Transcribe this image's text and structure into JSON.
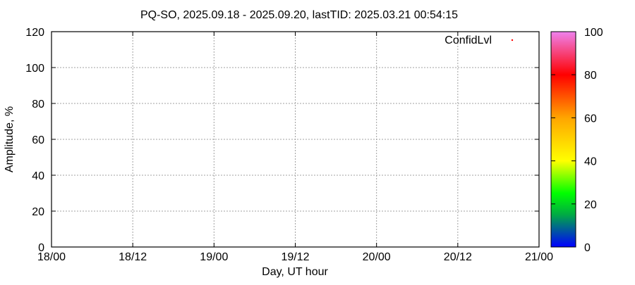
{
  "chart_data": {
    "type": "scatter",
    "title": "PQ-SO, 2025.09.18 - 2025.09.20, lastTID: 2025.03.21 00:54:15",
    "xlabel": "Day, UT hour",
    "ylabel": "Amplitude, %",
    "x_tick_labels": [
      "18/00",
      "18/12",
      "19/00",
      "19/12",
      "20/00",
      "20/12",
      "21/00"
    ],
    "y_ticks": [
      0,
      20,
      40,
      60,
      80,
      100,
      120
    ],
    "ylim": [
      0,
      120
    ],
    "grid": true,
    "legend": {
      "placement": "top-right",
      "entries": [
        {
          "name": "ConfidLvl",
          "color": "#ff0000",
          "marker": "dot"
        }
      ]
    },
    "series": [
      {
        "name": "ConfidLvl",
        "points": []
      }
    ],
    "colorbar": {
      "ticks": [
        0,
        20,
        40,
        60,
        80,
        100
      ],
      "range": [
        0,
        100
      ],
      "colors": [
        "#0000ff",
        "#00aa44",
        "#00ff00",
        "#ffff00",
        "#ffa500",
        "#ff0000",
        "#ee82ee"
      ]
    }
  }
}
